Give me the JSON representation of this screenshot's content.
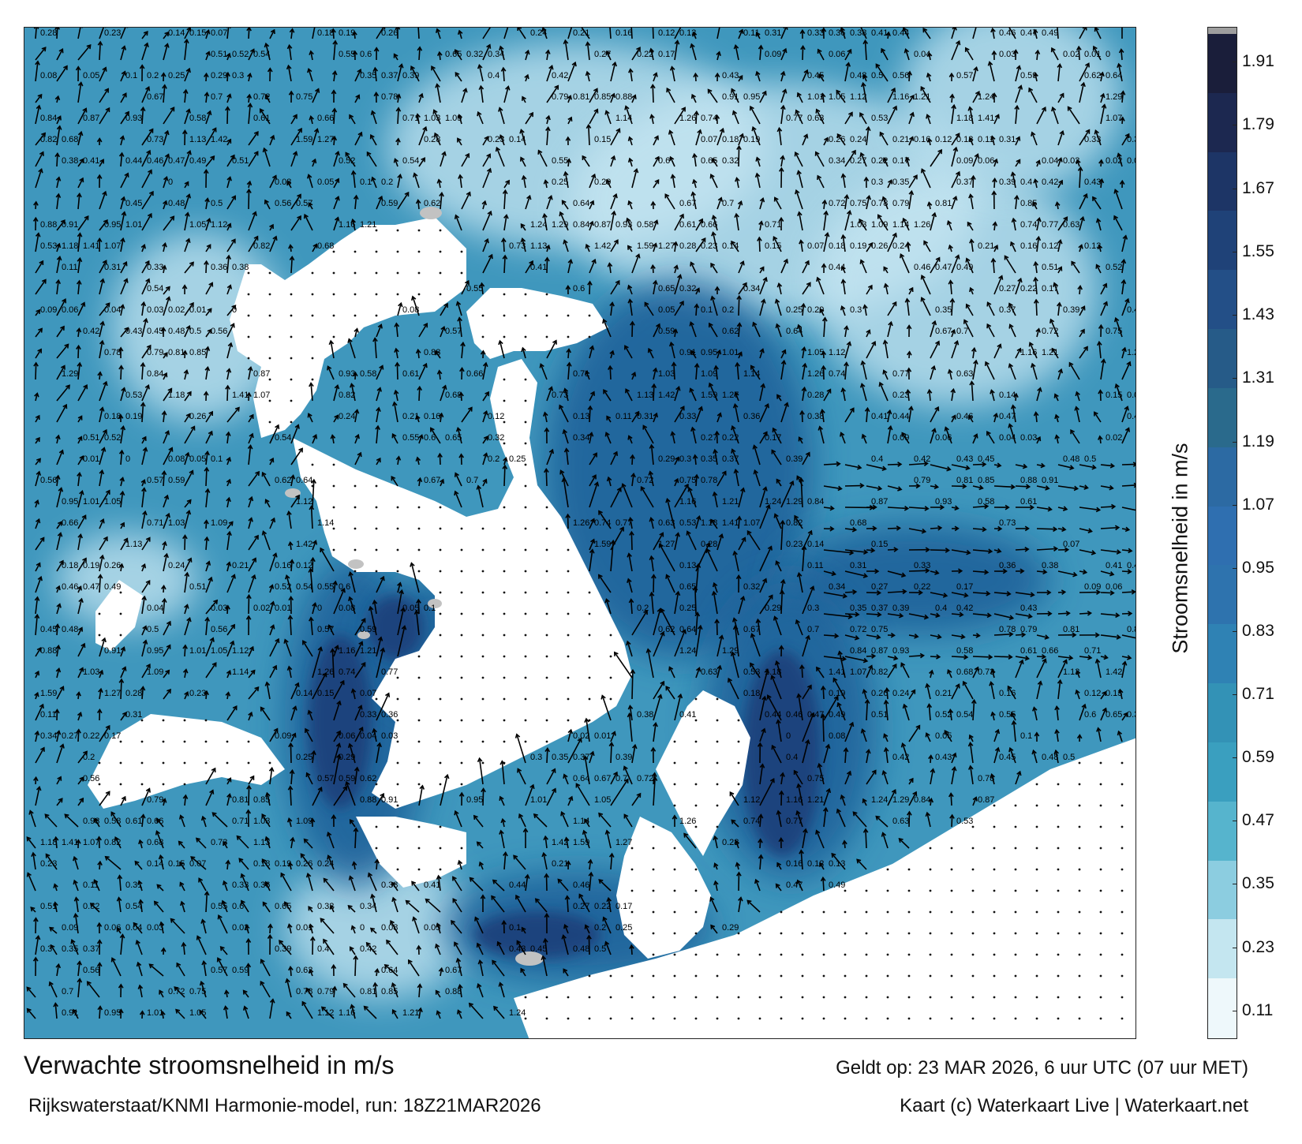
{
  "map": {
    "sea_color_light": "#c7e6f2",
    "sea_color_mid": "#3f97bd",
    "sea_color_dark": "#1d5f98",
    "sea_color_deep": "#1c3f7a",
    "land_color": "#ffffff",
    "island_color": "#c2c2c2",
    "arrow_color": "#000000",
    "speed_labels": [
      "0.28",
      "0.23",
      "0.14",
      "0.15",
      "0.07",
      "0.18",
      "0.19",
      "0.26",
      "0.24",
      "0.21",
      "0.16",
      "0.12",
      "0.13",
      "0.11",
      "0.31",
      "0.33",
      "0.36",
      "0.38",
      "0.41",
      "0.44",
      "0.46",
      "0.47",
      "0.49",
      "0.51",
      "0.52",
      "0.54",
      "0.55",
      "0.6",
      "0.65",
      "0.32",
      "0.34",
      "0.27",
      "0.22",
      "0.17",
      "0.09",
      "0.06",
      "0.04",
      "0.03",
      "0.02",
      "0.01",
      "0",
      "0.08",
      "0.05",
      "0.1",
      "0.2",
      "0.25",
      "0.29",
      "0.3",
      "0.35",
      "0.37",
      "0.39",
      "0.4",
      "0.42",
      "0.43",
      "0.45",
      "0.48",
      "0.5",
      "0.56",
      "0.57",
      "0.59",
      "0.62",
      "0.64",
      "0.67",
      "0.7",
      "0.72",
      "0.75",
      "0.78",
      "0.79",
      "0.81",
      "0.85",
      "0.88",
      "0.91",
      "0.95",
      "1.01",
      "1.05",
      "1.12",
      "1.16",
      "1.21",
      "1.24",
      "1.29",
      "0.84",
      "0.87",
      "0.93",
      "0.58",
      "0.61",
      "0.66",
      "0.71",
      "1.03",
      "1.09",
      "1.14",
      "1.26",
      "0.74",
      "0.77",
      "0.63",
      "0.53",
      "1.18",
      "1.41",
      "1.07",
      "0.82",
      "0.68",
      "0.73",
      "1.13",
      "1.42",
      "1.59",
      "1.27"
    ]
  },
  "colorbar": {
    "label": "Stroomsnelheid in m/s",
    "top_color": "#9e9e9e",
    "ticks": [
      "1.91",
      "1.79",
      "1.67",
      "1.55",
      "1.43",
      "1.31",
      "1.19",
      "1.07",
      "0.95",
      "0.83",
      "0.71",
      "0.59",
      "0.47",
      "0.35",
      "0.23",
      "0.11"
    ],
    "colors": [
      "#1a1e3a",
      "#1c2850",
      "#1d3566",
      "#1f4278",
      "#234f87",
      "#265b88",
      "#2a6a8c",
      "#2c6aa3",
      "#2f6fb0",
      "#2e73ae",
      "#2f82b4",
      "#3392b6",
      "#3a9fbf",
      "#56b4cd",
      "#8ccde0",
      "#c4e6f0",
      "#eef8fb"
    ]
  },
  "footer": {
    "title": "Verwachte stroomsnelheid in m/s",
    "valid": "Geldt op: 23 MAR 2026, 6 uur UTC (07 uur MET)",
    "model": "Rijkswaterstaat/KNMI Harmonie-model, run: 18Z21MAR2026",
    "credit": "Kaart (c) Waterkaart Live | Waterkaart.net"
  }
}
